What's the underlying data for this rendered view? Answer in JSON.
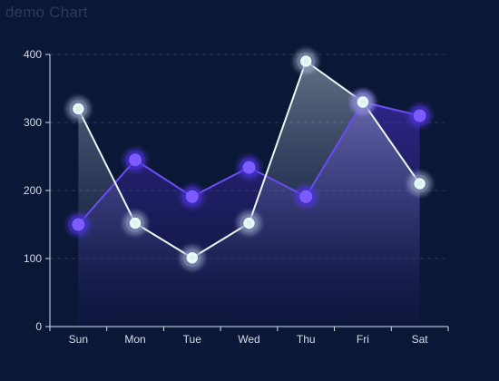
{
  "chart_data": {
    "type": "line",
    "title": "demo Chart",
    "categories": [
      "Sun",
      "Mon",
      "Tue",
      "Wed",
      "Thu",
      "Fri",
      "Sat"
    ],
    "ylim": [
      0,
      400
    ],
    "yticks": [
      0,
      100,
      200,
      300,
      400
    ],
    "grid": true,
    "series": [
      {
        "values": [
          150,
          245,
          191,
          234,
          191,
          330,
          310
        ],
        "color": "#6a4df2",
        "style": "area-dark"
      },
      {
        "values": [
          320,
          152,
          101,
          152,
          390,
          330,
          210
        ],
        "color": "#e8f7f7",
        "style": "area-light"
      }
    ]
  },
  "colors": {
    "background": "#0b1736",
    "axis": "#d8dde8",
    "grid": "#2f3a55",
    "series_purple": "#6a4df2",
    "series_light": "#e8f7f7"
  }
}
